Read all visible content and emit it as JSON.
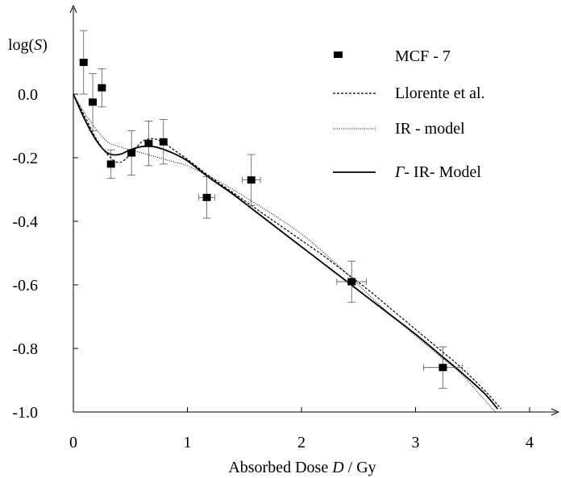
{
  "chart_data": {
    "type": "scatter",
    "ylabel": {
      "prefix": "log(",
      "var": "S",
      "suffix": ")"
    },
    "xlabel": {
      "prefix": "Absorbed Dose ",
      "var": "D",
      "suffix": " / Gy"
    },
    "xlim": [
      0,
      4.3
    ],
    "ylim": [
      -1.0,
      0.2
    ],
    "x_ticks": [
      {
        "value": 0,
        "label": "0"
      },
      {
        "value": 1,
        "label": "1"
      },
      {
        "value": 2,
        "label": "2"
      },
      {
        "value": 3,
        "label": "3"
      },
      {
        "value": 4,
        "label": "4"
      }
    ],
    "y_ticks": [
      {
        "value": 0.0,
        "label": "0.0"
      },
      {
        "value": -0.2,
        "label": "-0.2"
      },
      {
        "value": -0.4,
        "label": "-0.4"
      },
      {
        "value": -0.6,
        "label": "-0.6"
      },
      {
        "value": -0.8,
        "label": "-0.8"
      },
      {
        "value": -1.0,
        "label": "-1.0"
      }
    ],
    "grid": false,
    "legend_position": "top-right",
    "legend": [
      {
        "key": "mcf7",
        "label": "MCF - 7",
        "style": "marker"
      },
      {
        "key": "llorente",
        "label": "Llorente et al.",
        "style": "dashed"
      },
      {
        "key": "ir",
        "label": "IR - model",
        "style": "dotted"
      },
      {
        "key": "gamma",
        "label_greek": "Γ",
        "label": "- IR- Model",
        "style": "solid"
      }
    ],
    "points": [
      {
        "x": 0.09,
        "y": 0.1,
        "yerr": 0.1,
        "xerr": 0
      },
      {
        "x": 0.17,
        "y": -0.025,
        "yerr": 0.09,
        "xerr": 0
      },
      {
        "x": 0.25,
        "y": 0.02,
        "yerr": 0.06,
        "xerr": 0
      },
      {
        "x": 0.33,
        "y": -0.22,
        "yerr": 0.045,
        "xerr": 0
      },
      {
        "x": 0.51,
        "y": -0.185,
        "yerr": 0.07,
        "xerr": 0
      },
      {
        "x": 0.66,
        "y": -0.155,
        "yerr": 0.07,
        "xerr": 0
      },
      {
        "x": 0.79,
        "y": -0.15,
        "yerr": 0.07,
        "xerr": 0
      },
      {
        "x": 1.17,
        "y": -0.325,
        "yerr": 0.065,
        "xerr": 0.07
      },
      {
        "x": 1.56,
        "y": -0.27,
        "yerr": 0.08,
        "xerr": 0.08
      },
      {
        "x": 2.44,
        "y": -0.59,
        "yerr": 0.065,
        "xerr": 0.13
      },
      {
        "x": 3.24,
        "y": -0.86,
        "yerr": 0.065,
        "xerr": 0.17
      }
    ],
    "series": [
      {
        "key": "llorente",
        "style": "dashed",
        "x": [
          0,
          0.1,
          0.2,
          0.3,
          0.4,
          0.5,
          0.6,
          0.7,
          0.8,
          0.9,
          1.0,
          1.2,
          1.4,
          1.6,
          1.8,
          2.0,
          2.2,
          2.4,
          2.6,
          2.8,
          3.0,
          3.2,
          3.4,
          3.6,
          3.75
        ],
        "y": [
          0,
          -0.07,
          -0.14,
          -0.19,
          -0.215,
          -0.19,
          -0.15,
          -0.14,
          -0.155,
          -0.18,
          -0.205,
          -0.26,
          -0.31,
          -0.36,
          -0.41,
          -0.46,
          -0.51,
          -0.565,
          -0.62,
          -0.68,
          -0.74,
          -0.8,
          -0.86,
          -0.93,
          -0.99
        ]
      },
      {
        "key": "ir",
        "style": "dotted",
        "x": [
          0,
          0.1,
          0.2,
          0.3,
          0.4,
          0.5,
          0.6,
          0.7,
          0.8,
          0.9,
          1.0,
          1.2,
          1.4,
          1.6,
          1.8,
          2.0,
          2.2,
          2.4,
          2.6,
          2.8,
          3.0,
          3.2,
          3.4,
          3.6,
          3.7
        ],
        "y": [
          0,
          -0.06,
          -0.11,
          -0.15,
          -0.165,
          -0.175,
          -0.185,
          -0.195,
          -0.205,
          -0.215,
          -0.225,
          -0.26,
          -0.3,
          -0.345,
          -0.39,
          -0.44,
          -0.5,
          -0.565,
          -0.635,
          -0.7,
          -0.76,
          -0.82,
          -0.88,
          -0.96,
          -1.0
        ]
      },
      {
        "key": "gamma",
        "style": "solid",
        "x": [
          0,
          0.1,
          0.2,
          0.3,
          0.4,
          0.5,
          0.6,
          0.7,
          0.8,
          0.9,
          1.0,
          1.2,
          1.4,
          1.6,
          1.8,
          2.0,
          2.2,
          2.4,
          2.6,
          2.8,
          3.0,
          3.2,
          3.4,
          3.6,
          3.72
        ],
        "y": [
          0,
          -0.08,
          -0.145,
          -0.185,
          -0.19,
          -0.175,
          -0.165,
          -0.165,
          -0.175,
          -0.19,
          -0.21,
          -0.265,
          -0.315,
          -0.37,
          -0.425,
          -0.48,
          -0.535,
          -0.59,
          -0.645,
          -0.7,
          -0.755,
          -0.815,
          -0.875,
          -0.94,
          -0.99
        ]
      }
    ]
  }
}
